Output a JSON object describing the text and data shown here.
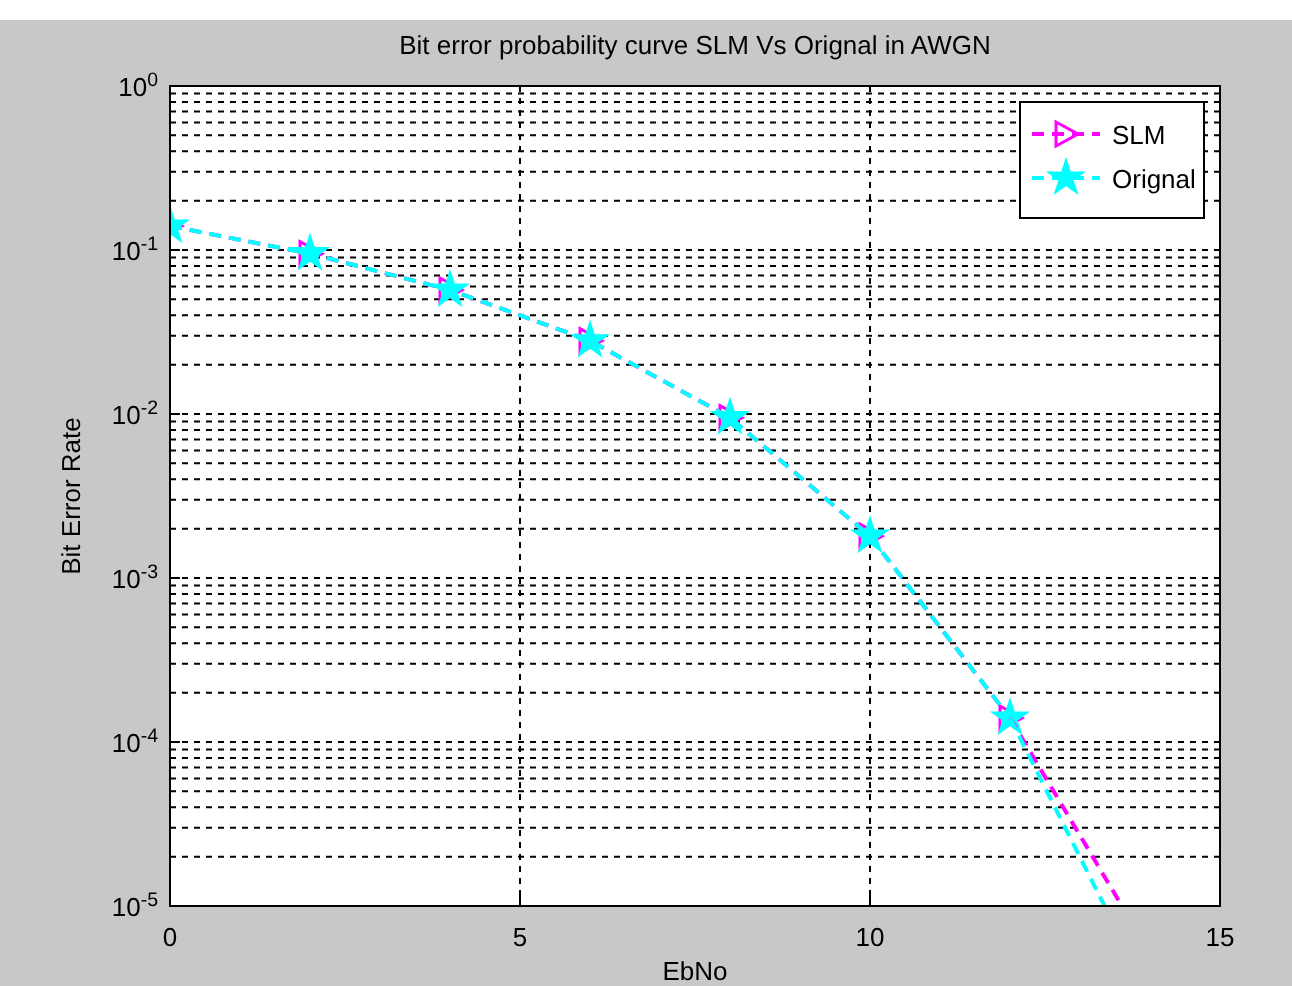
{
  "chart_data": {
    "type": "line",
    "title": "Bit error probability curve SLM Vs Orignal in AWGN",
    "xlabel": "EbNo",
    "ylabel": "Bit Error Rate",
    "log": "y",
    "grid": true,
    "legend": "top right",
    "line_style": "dashed",
    "xlim": [
      0,
      15
    ],
    "xticks": [
      0,
      5,
      10,
      15
    ],
    "ylim": [
      1e-05,
      1
    ],
    "yticks": [
      {
        "value": 1,
        "label": "10$^{0}$"
      },
      {
        "value": 0.1,
        "label": "10$^{-1}$"
      },
      {
        "value": 0.01,
        "label": "10$^{-2}$"
      },
      {
        "value": 0.001,
        "label": "10$^{-3}$"
      },
      {
        "value": 0.0001,
        "label": "10$^{-4}$"
      },
      {
        "value": 1e-05,
        "label": "10$^{-5}$"
      }
    ],
    "series": [
      {
        "name": "SLM",
        "color": "#ff00ff",
        "marker": "triangle",
        "x": [
          0,
          2,
          4,
          6,
          8,
          10,
          12
        ],
        "values": [
          0.14,
          0.095,
          0.057,
          0.028,
          0.0095,
          0.0018,
          0.00014
        ]
      },
      {
        "name": "Orignal",
        "color": "#00ffff",
        "marker": "star",
        "x": [
          0,
          2,
          4,
          6,
          8,
          10,
          12
        ],
        "values": [
          0.14,
          0.095,
          0.057,
          0.028,
          0.0095,
          0.0018,
          0.00014
        ]
      },
      {
        "color": "#ff00ff",
        "marker": "none",
        "x": [
          12,
          13.6
        ],
        "values": [
          0.00014,
          1e-05
        ]
      },
      {
        "color": "#00ffff",
        "marker": "none",
        "x": [
          12,
          13.35
        ],
        "values": [
          0.00014,
          1e-05
        ]
      }
    ]
  }
}
